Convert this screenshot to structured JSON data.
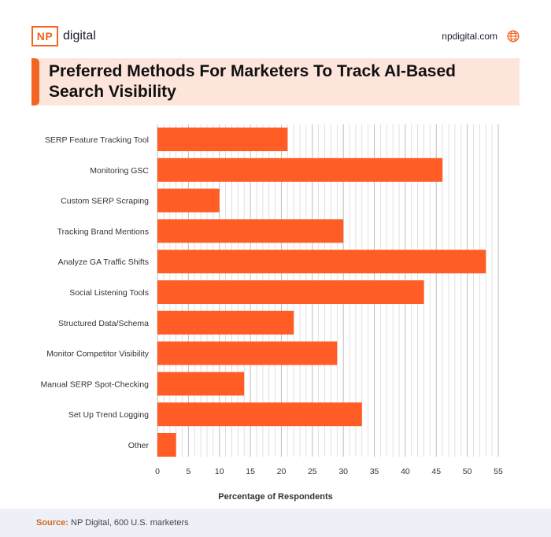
{
  "brand": {
    "logo_mark": "NP",
    "logo_name": "digital",
    "site": "npdigital.com",
    "globe_icon": "globe-icon"
  },
  "title": "Preferred Methods For Marketers To Track AI-Based Search Visibility",
  "footer": {
    "source_label": "Source:",
    "source_text": "NP Digital, 600 U.S. marketers"
  },
  "colors": {
    "accent": "#f26522",
    "bar": "#ff5c26",
    "title_band": "#fde5db",
    "footer_band": "#eef0f8"
  },
  "chart_data": {
    "type": "bar",
    "orientation": "horizontal",
    "categories": [
      "SERP Feature Tracking Tool",
      "Monitoring GSC",
      "Custom SERP Scraping",
      "Tracking Brand Mentions",
      "Analyze GA Traffic Shifts",
      "Social Listening Tools",
      "Structured Data/Schema",
      "Monitor Competitor Visibility",
      "Manual SERP Spot-Checking",
      "Set Up Trend Logging",
      "Other"
    ],
    "values": [
      21,
      46,
      10,
      30,
      53,
      43,
      22,
      29,
      14,
      33,
      3
    ],
    "xlabel": "Percentage of Respondents",
    "ylabel": "",
    "xlim": [
      0,
      55
    ],
    "xticks": [
      0,
      5,
      10,
      15,
      20,
      25,
      30,
      35,
      40,
      45,
      50,
      55
    ],
    "grid": true
  }
}
